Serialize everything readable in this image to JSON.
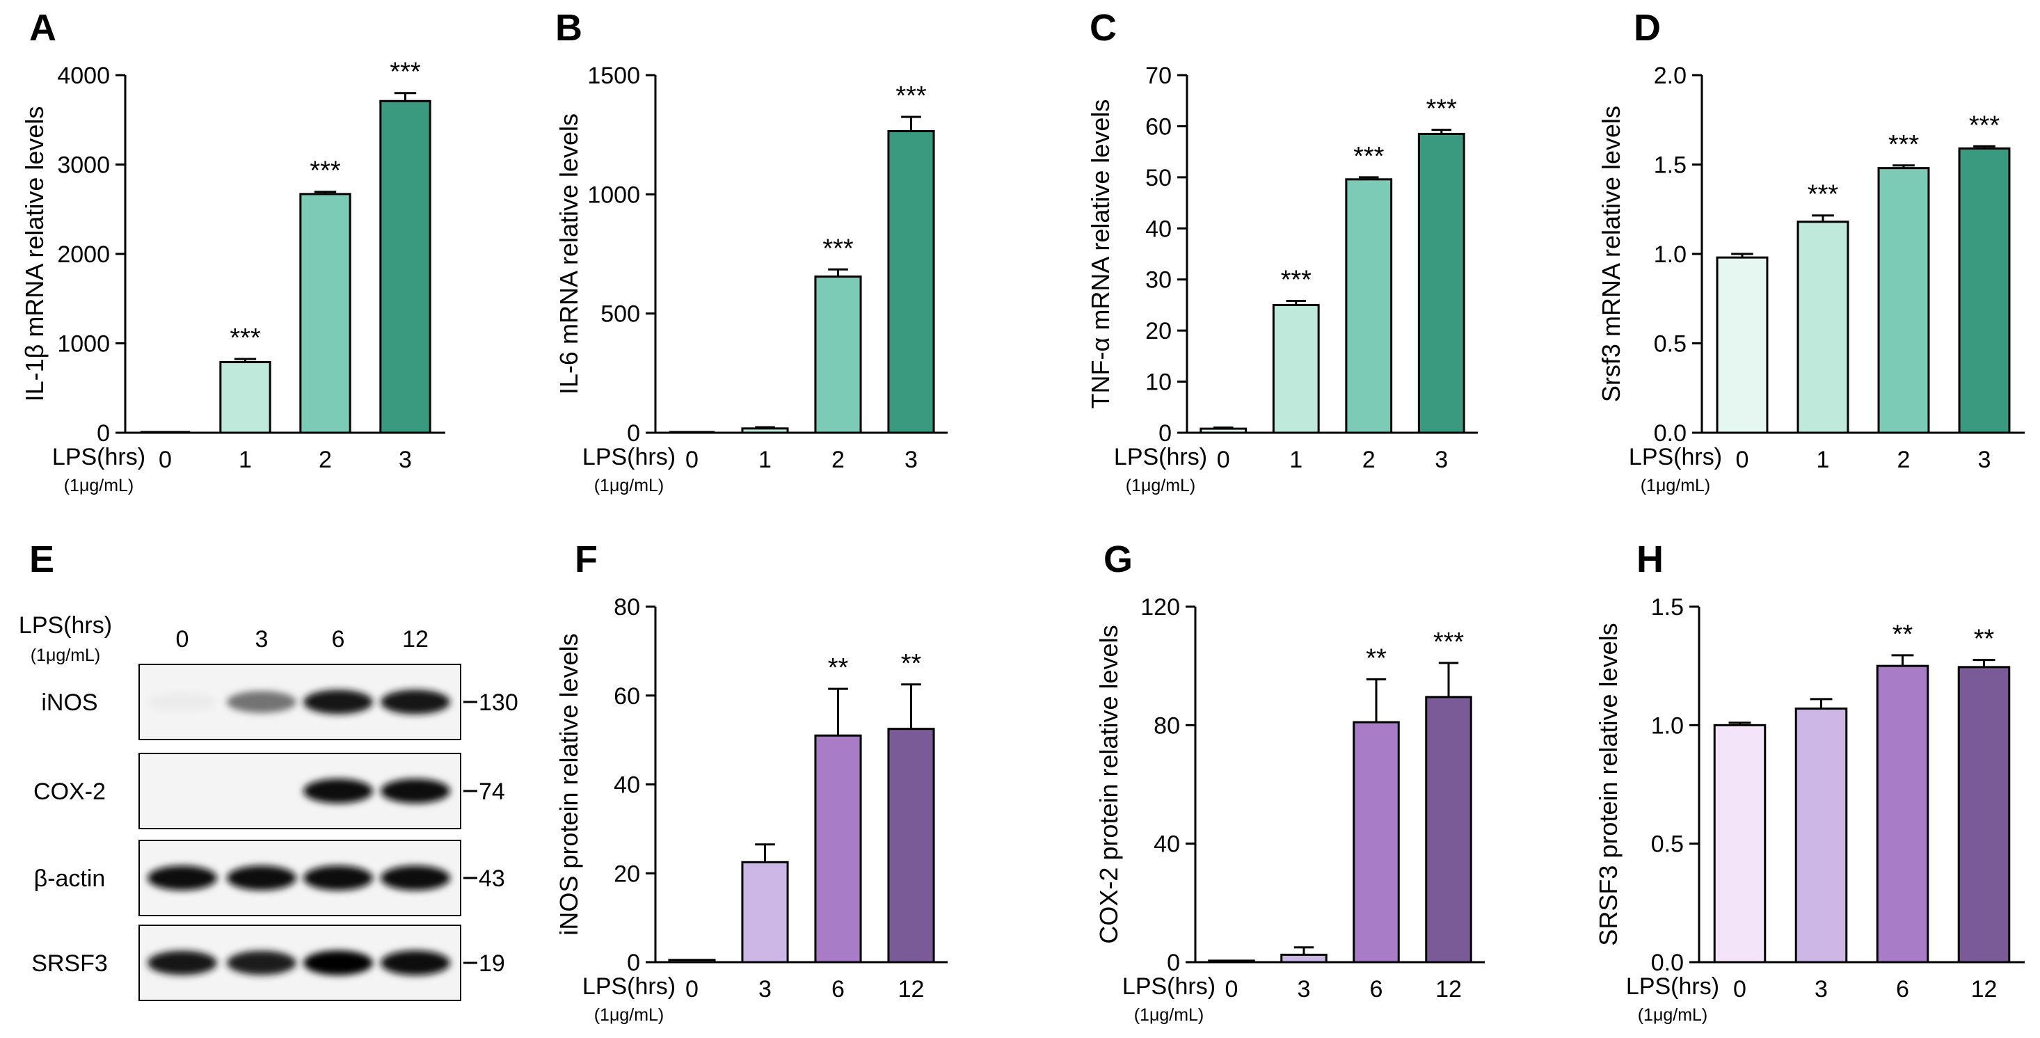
{
  "chart_data": [
    {
      "type": "bar",
      "panel": "A",
      "title": "",
      "ylabel": "IL-1β mRNA relative levels",
      "xlabel": "LPS(hrs)",
      "xlabel_sub": "(1μg/mL)",
      "categories": [
        "0",
        "1",
        "2",
        "3"
      ],
      "values": [
        1,
        790,
        2670,
        3710
      ],
      "errors": [
        0,
        35,
        25,
        90
      ],
      "significance": [
        "",
        "***",
        "***",
        "***"
      ],
      "ylim": [
        0,
        4000
      ],
      "yticks": [
        0,
        1000,
        2000,
        3000,
        4000
      ],
      "ytick_labels": [
        "0",
        "1000",
        "2000",
        "3000",
        "4000"
      ],
      "colors": [
        "#e6f7f1",
        "#bfe9da",
        "#7ccbb6",
        "#3a9a80"
      ]
    },
    {
      "type": "bar",
      "panel": "B",
      "title": "",
      "ylabel": "IL-6 mRNA relative levels",
      "xlabel": "LPS(hrs)",
      "xlabel_sub": "(1μg/mL)",
      "categories": [
        "0",
        "1",
        "2",
        "3"
      ],
      "values": [
        1,
        18,
        655,
        1265
      ],
      "errors": [
        0,
        5,
        30,
        60
      ],
      "significance": [
        "",
        "",
        "***",
        "***"
      ],
      "ylim": [
        0,
        1500
      ],
      "yticks": [
        0,
        500,
        1000,
        1500
      ],
      "ytick_labels": [
        "0",
        "500",
        "1000",
        "1500"
      ],
      "colors": [
        "#e6f7f1",
        "#bfe9da",
        "#7ccbb6",
        "#3a9a80"
      ]
    },
    {
      "type": "bar",
      "panel": "C",
      "title": "",
      "ylabel": "TNF-α mRNA relative levels",
      "xlabel": "LPS(hrs)",
      "xlabel_sub": "(1μg/mL)",
      "categories": [
        "0",
        "1",
        "2",
        "3"
      ],
      "values": [
        0.8,
        25,
        49.6,
        58.5
      ],
      "errors": [
        0.2,
        0.8,
        0.4,
        0.8
      ],
      "significance": [
        "",
        "***",
        "***",
        "***"
      ],
      "ylim": [
        0,
        70
      ],
      "yticks": [
        0,
        10,
        20,
        30,
        40,
        50,
        60,
        70
      ],
      "ytick_labels": [
        "0",
        "10",
        "20",
        "30",
        "40",
        "50",
        "60",
        "70"
      ],
      "colors": [
        "#e6f7f1",
        "#bfe9da",
        "#7ccbb6",
        "#3a9a80"
      ]
    },
    {
      "type": "bar",
      "panel": "D",
      "title": "",
      "ylabel": "Srsf3 mRNA relative levels",
      "xlabel": "LPS(hrs)",
      "xlabel_sub": "(1μg/mL)",
      "categories": [
        "0",
        "1",
        "2",
        "3"
      ],
      "values": [
        0.98,
        1.18,
        1.48,
        1.59
      ],
      "errors": [
        0.02,
        0.035,
        0.015,
        0.012
      ],
      "significance": [
        "",
        "***",
        "***",
        "***"
      ],
      "ylim": [
        0,
        2.0
      ],
      "yticks": [
        0,
        0.5,
        1.0,
        1.5,
        2.0
      ],
      "ytick_labels": [
        "0.0",
        "0.5",
        "1.0",
        "1.5",
        "2.0"
      ],
      "colors": [
        "#e6f7f1",
        "#bfe9da",
        "#7ccbb6",
        "#3a9a80"
      ]
    },
    {
      "type": "bar",
      "panel": "F",
      "title": "",
      "ylabel": "iNOS protein relative levels",
      "xlabel": "LPS(hrs)",
      "xlabel_sub": "(1μg/mL)",
      "categories": [
        "0",
        "3",
        "6",
        "12"
      ],
      "values": [
        0.5,
        22.5,
        51,
        52.5
      ],
      "errors": [
        0,
        4,
        10.5,
        10
      ],
      "significance": [
        "",
        "",
        "**",
        "**"
      ],
      "ylim": [
        0,
        80
      ],
      "yticks": [
        0,
        20,
        40,
        60,
        80
      ],
      "ytick_labels": [
        "0",
        "20",
        "40",
        "60",
        "80"
      ],
      "colors": [
        "#f3e4f9",
        "#cdb7e6",
        "#a97cc8",
        "#7b5a98"
      ]
    },
    {
      "type": "bar",
      "panel": "G",
      "title": "",
      "ylabel": "COX-2 protein relative levels",
      "xlabel": "LPS(hrs)",
      "xlabel_sub": "(1μg/mL)",
      "categories": [
        "0",
        "3",
        "6",
        "12"
      ],
      "values": [
        0.5,
        2.5,
        81,
        89.5
      ],
      "errors": [
        0,
        2.5,
        14.5,
        11.5
      ],
      "significance": [
        "",
        "",
        "**",
        "***"
      ],
      "ylim": [
        0,
        120
      ],
      "yticks": [
        0,
        40,
        80,
        120
      ],
      "ytick_labels": [
        "0",
        "40",
        "80",
        "120"
      ],
      "colors": [
        "#f3e4f9",
        "#cdb7e6",
        "#a97cc8",
        "#7b5a98"
      ]
    },
    {
      "type": "bar",
      "panel": "H",
      "title": "",
      "ylabel": "SRSF3 protein relative levels",
      "xlabel": "LPS(hrs)",
      "xlabel_sub": "(1μg/mL)",
      "categories": [
        "0",
        "3",
        "6",
        "12"
      ],
      "values": [
        1.0,
        1.07,
        1.25,
        1.245
      ],
      "errors": [
        0.01,
        0.04,
        0.045,
        0.03
      ],
      "significance": [
        "",
        "",
        "**",
        "**"
      ],
      "ylim": [
        0,
        1.5
      ],
      "yticks": [
        0,
        0.5,
        1.0,
        1.5
      ],
      "ytick_labels": [
        "0.0",
        "0.5",
        "1.0",
        "1.5"
      ],
      "colors": [
        "#f3e4f9",
        "#cdb7e6",
        "#a97cc8",
        "#7b5a98"
      ]
    }
  ],
  "blot": {
    "panel": "E",
    "lps_label": "LPS(hrs)",
    "lps_sub": "(1μg/mL)",
    "lanes": [
      "0",
      "3",
      "6",
      "12"
    ],
    "rows": [
      {
        "protein": "iNOS",
        "marker": "130",
        "intensities": [
          0.08,
          0.55,
          0.9,
          0.92
        ]
      },
      {
        "protein": "COX-2",
        "marker": "74",
        "intensities": [
          0,
          0,
          0.95,
          0.95
        ]
      },
      {
        "protein": "β-actin",
        "marker": "43",
        "intensities": [
          0.95,
          0.95,
          0.97,
          0.97
        ]
      },
      {
        "protein": "SRSF3",
        "marker": "19",
        "intensities": [
          0.9,
          0.88,
          0.98,
          0.97
        ]
      }
    ]
  }
}
